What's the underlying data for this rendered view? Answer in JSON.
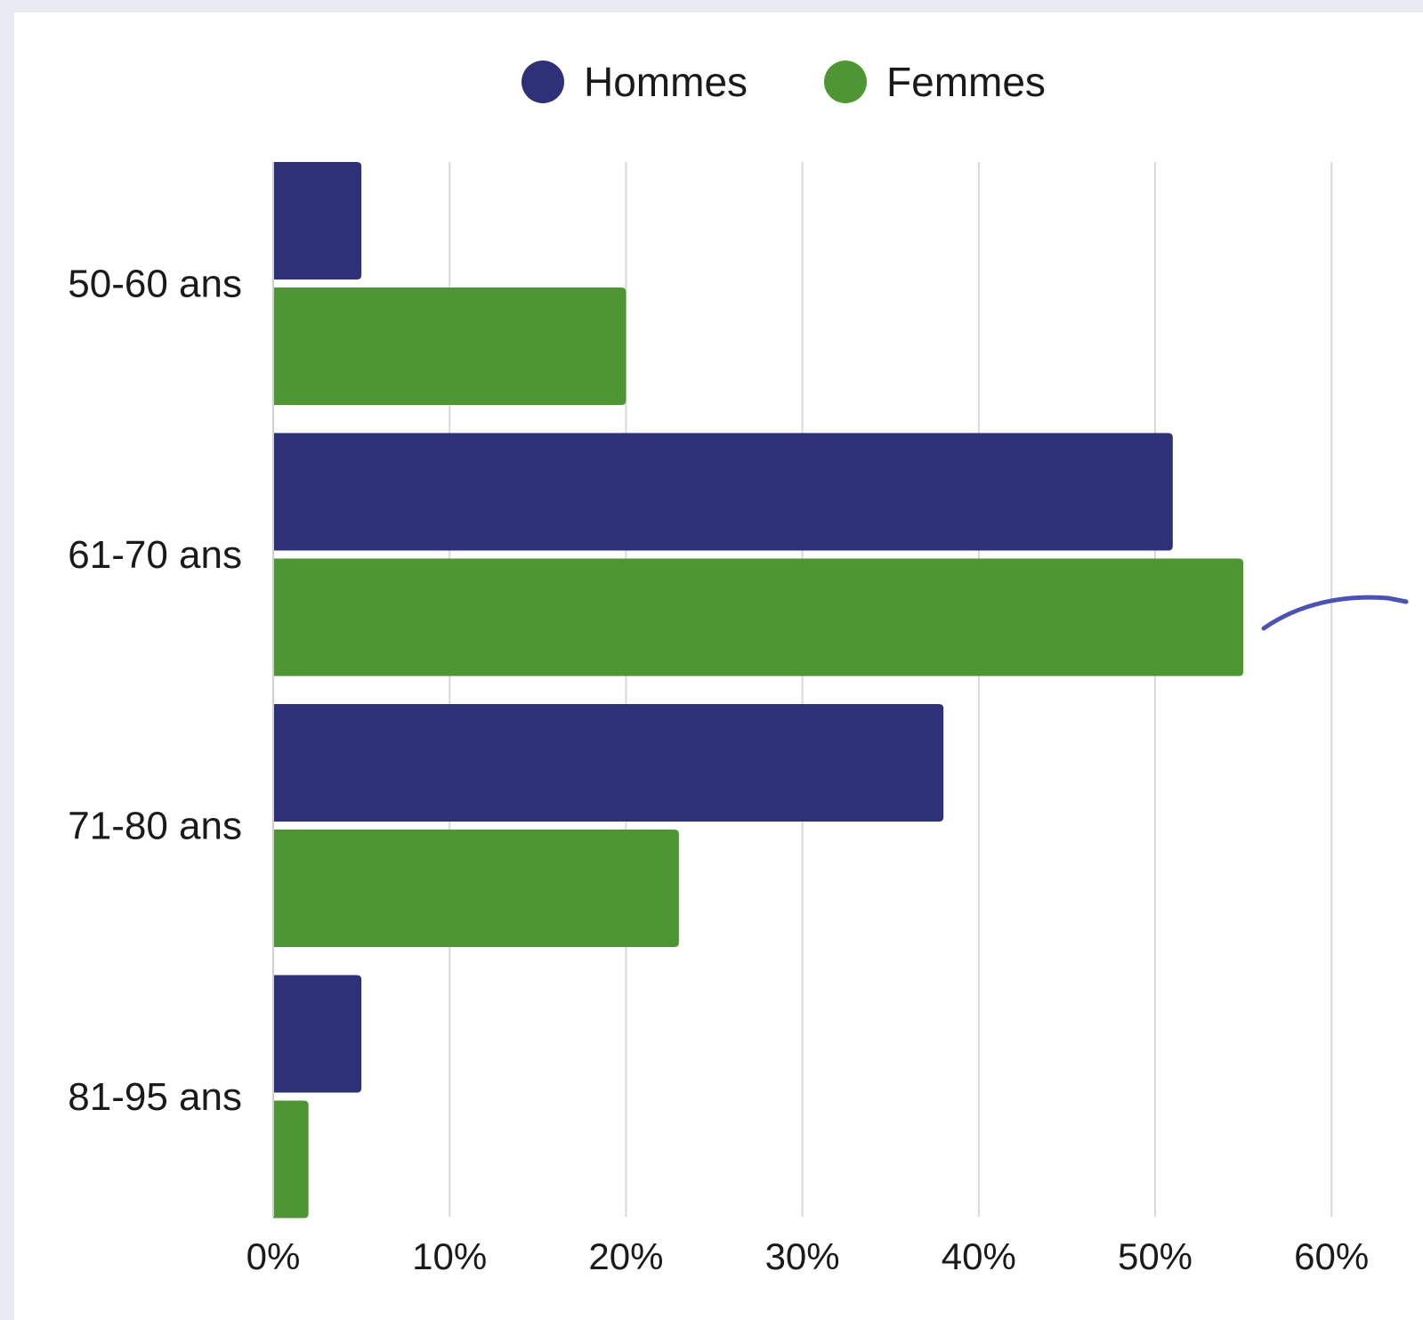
{
  "chart_data": {
    "type": "bar",
    "orientation": "horizontal",
    "categories": [
      "50-60 ans",
      "61-70 ans",
      "71-80 ans",
      "81-95 ans"
    ],
    "series": [
      {
        "name": "Hommes",
        "color": "#2e3178",
        "values": [
          5,
          51,
          38,
          5
        ]
      },
      {
        "name": "Femmes",
        "color": "#4e9634",
        "values": [
          20,
          55,
          23,
          2
        ]
      }
    ],
    "xlim": [
      0,
      60
    ],
    "xticks": [
      "0%",
      "10%",
      "20%",
      "30%",
      "40%",
      "50%",
      "60%"
    ],
    "xtick_values": [
      0,
      10,
      20,
      30,
      40,
      50,
      60
    ],
    "grid": "vertical",
    "legend": "top-center",
    "title": "",
    "xlabel": "",
    "ylabel": ""
  },
  "annotation_color": "#4a52b5"
}
